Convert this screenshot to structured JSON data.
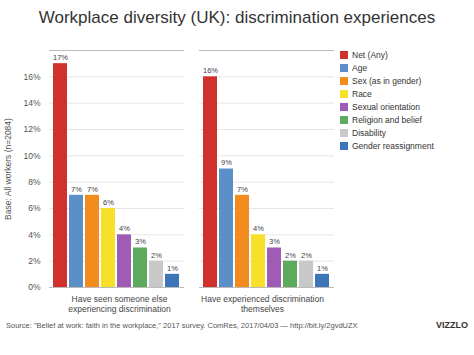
{
  "chart_data": {
    "type": "bar",
    "title": "Workplace diversity (UK): discrimination experiences",
    "y_label": "Base: All workers (n=2084)",
    "source": "Source: \"Belief at work: faith in the workplace,\" 2017 survey. ComRes, 2017/04/03 — http://bit.ly/2gvdUZX",
    "brand": "VIZZLO",
    "categories": [
      "Have seen someone else experiencing discrimination",
      "Have experienced discrimination themselves"
    ],
    "series": [
      {
        "name": "Net (Any)",
        "color": "#d0312d",
        "values": [
          17,
          16
        ],
        "value_labels": [
          "17%",
          "16%"
        ]
      },
      {
        "name": "Age",
        "color": "#5b8fc7",
        "values": [
          7,
          9
        ],
        "value_labels": [
          "7%",
          "9%"
        ]
      },
      {
        "name": "Sex (as in gender)",
        "color": "#f28c1e",
        "values": [
          7,
          7
        ],
        "value_labels": [
          "7%",
          "7%"
        ]
      },
      {
        "name": "Race",
        "color": "#f7e02a",
        "values": [
          6,
          4
        ],
        "value_labels": [
          "6%",
          "4%"
        ]
      },
      {
        "name": "Sexual orientation",
        "color": "#a05cb5",
        "values": [
          4,
          3
        ],
        "value_labels": [
          "4%",
          "3%"
        ]
      },
      {
        "name": "Religion and belief",
        "color": "#5caa5c",
        "values": [
          3,
          2
        ],
        "value_labels": [
          "3%",
          "2%"
        ]
      },
      {
        "name": "Disability",
        "color": "#c8c8c8",
        "values": [
          2,
          2
        ],
        "value_labels": [
          "2%",
          "2%"
        ]
      },
      {
        "name": "Gender reassignment",
        "color": "#3d75b8",
        "values": [
          1,
          1
        ],
        "value_labels": [
          "1%",
          "1%"
        ]
      }
    ],
    "ylim": [
      0,
      18
    ],
    "yticks": [
      {
        "value": 0,
        "label": "0%"
      },
      {
        "value": 2,
        "label": "2%"
      },
      {
        "value": 4,
        "label": "4%"
      },
      {
        "value": 6,
        "label": "6%"
      },
      {
        "value": 8,
        "label": "8%"
      },
      {
        "value": 10,
        "label": "10%"
      },
      {
        "value": 12,
        "label": "12%"
      },
      {
        "value": 14,
        "label": "14%"
      },
      {
        "value": 16,
        "label": "16%"
      }
    ],
    "grid": true,
    "data_labels": true,
    "legend": "right"
  }
}
